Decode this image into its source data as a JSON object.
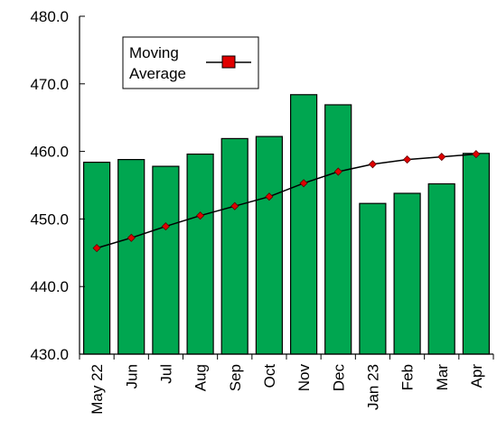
{
  "chart_data": {
    "type": "bar",
    "categories": [
      "May 22",
      "Jun",
      "Jul",
      "Aug",
      "Sep",
      "Oct",
      "Nov",
      "Dec",
      "Jan 23",
      "Feb",
      "Mar",
      "Apr"
    ],
    "series": [
      {
        "type": "bar",
        "color": "#00A650",
        "values": [
          458.4,
          458.8,
          457.8,
          459.6,
          461.9,
          462.2,
          468.4,
          466.9,
          452.3,
          453.8,
          455.2,
          459.7
        ]
      },
      {
        "name": "Moving Average",
        "type": "line",
        "color": "#000000",
        "marker_color": "#E00000",
        "values": [
          445.7,
          447.2,
          448.9,
          450.5,
          451.9,
          453.3,
          455.3,
          457.0,
          458.1,
          458.8,
          459.2,
          459.6
        ]
      }
    ],
    "ylim": [
      430,
      480
    ],
    "yticks": [
      "430.0",
      "440.0",
      "450.0",
      "460.0",
      "470.0",
      "480.0"
    ],
    "legend": {
      "position": "top-left",
      "label_line1": "Moving",
      "label_line2": "Average"
    },
    "grid": false
  }
}
